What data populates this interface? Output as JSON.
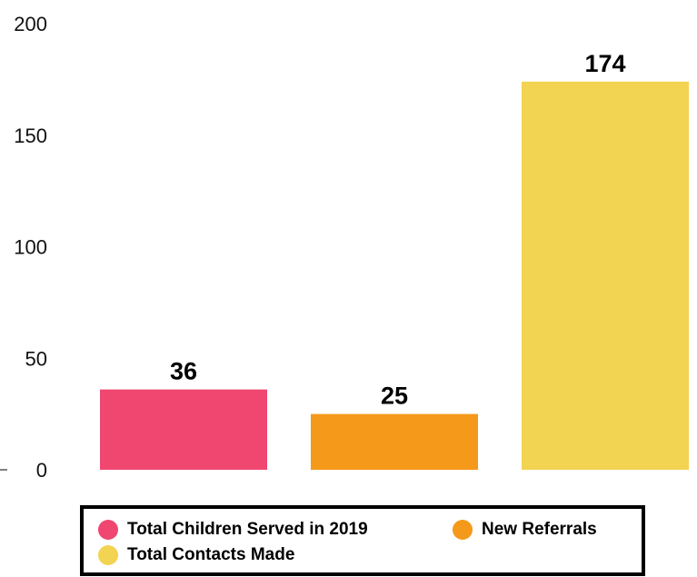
{
  "chart_data": {
    "type": "bar",
    "categories": [
      "Total Children Served in 2019",
      "New Referrals",
      "Total Contacts Made"
    ],
    "values": [
      36,
      25,
      174
    ],
    "colors": [
      "#ef476f",
      "#f4991a",
      "#f3d352"
    ],
    "ylim": [
      0,
      200
    ],
    "yticks": [
      0,
      50,
      100,
      150,
      200
    ],
    "title": "",
    "xlabel": "",
    "ylabel": "",
    "grid": false,
    "legend_position": "bottom",
    "legend": [
      {
        "label": "Total Children Served in 2019",
        "color": "#ef476f"
      },
      {
        "label": "New Referrals",
        "color": "#f4991a"
      },
      {
        "label": "Total Contacts Made",
        "color": "#f3d352"
      }
    ]
  }
}
